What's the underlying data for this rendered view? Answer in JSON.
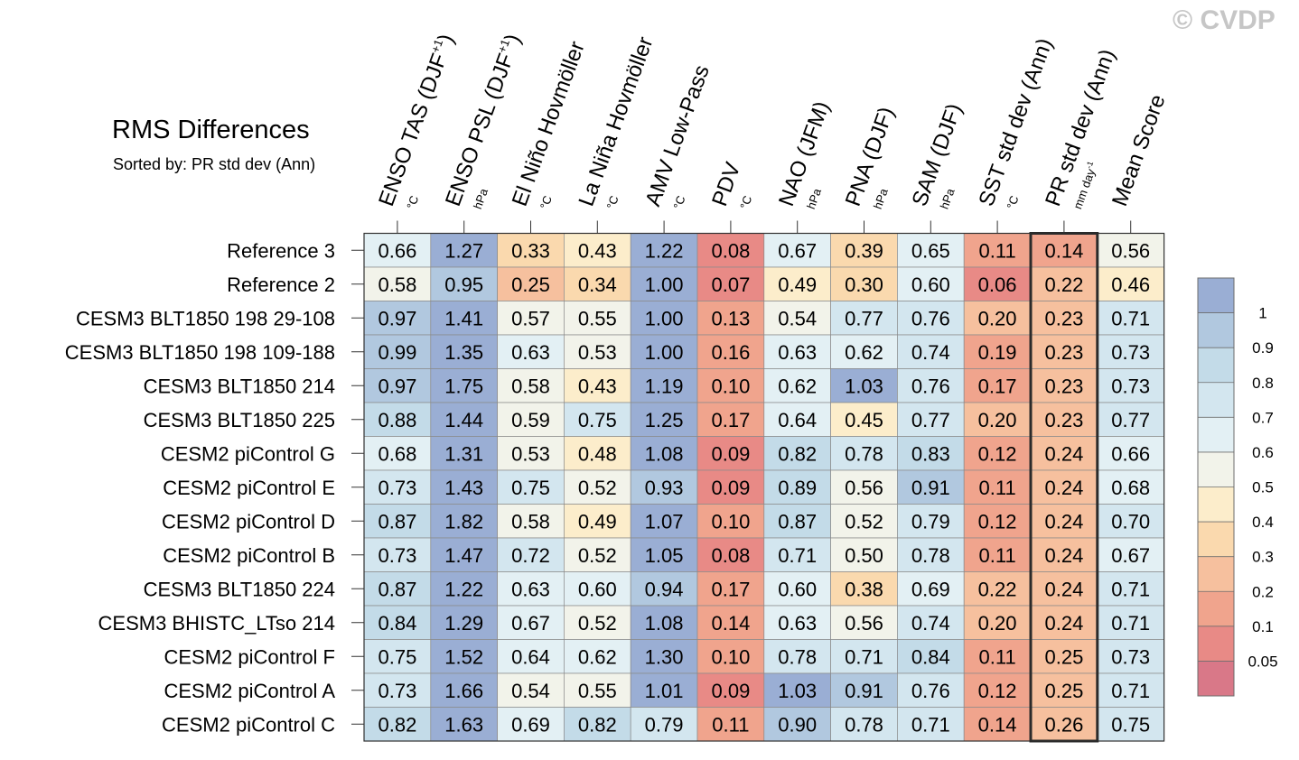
{
  "title": "RMS Differences",
  "subtitle": "Sorted by: PR std dev (Ann)",
  "watermark": "© CVDP",
  "chart_data": {
    "type": "heatmap",
    "columns": [
      {
        "name": "ENSO TAS (DJF",
        "sup": "+1",
        "close": ")",
        "unit": "°C"
      },
      {
        "name": "ENSO PSL (DJF",
        "sup": "+1",
        "close": ")",
        "unit": "hPa"
      },
      {
        "name": "El Niño Hovmöller",
        "unit": "°C"
      },
      {
        "name": "La Niña Hovmöller",
        "unit": "°C"
      },
      {
        "name": "AMV Low-Pass",
        "unit": "°C"
      },
      {
        "name": "PDV",
        "unit": "°C"
      },
      {
        "name": "NAO (JFM)",
        "unit": "hPa"
      },
      {
        "name": "PNA (DJF)",
        "unit": "hPa"
      },
      {
        "name": "SAM (DJF)",
        "unit": "hPa"
      },
      {
        "name": "SST std dev (Ann)",
        "unit": "°C"
      },
      {
        "name": "PR std dev (Ann)",
        "unit": "mm day",
        "unit_sup": "-1"
      },
      {
        "name": "Mean Score",
        "unit": ""
      }
    ],
    "rows": [
      "Reference 3",
      "Reference 2",
      "CESM3 BLT1850 198 29-108",
      "CESM3 BLT1850 198 109-188",
      "CESM3 BLT1850 214",
      "CESM3 BLT1850 225",
      "CESM2 piControl G",
      "CESM2 piControl E",
      "CESM2 piControl D",
      "CESM2 piControl B",
      "CESM3 BLT1850 224",
      "CESM3 BHISTC_LTso 214",
      "CESM2 piControl F",
      "CESM2 piControl A",
      "CESM2 piControl C"
    ],
    "values": [
      [
        "0.66",
        "1.27",
        "0.33",
        "0.43",
        "1.22",
        "0.08",
        "0.67",
        "0.39",
        "0.65",
        "0.11",
        "0.14",
        "0.56"
      ],
      [
        "0.58",
        "0.95",
        "0.25",
        "0.34",
        "1.00",
        "0.07",
        "0.49",
        "0.30",
        "0.60",
        "0.06",
        "0.22",
        "0.46"
      ],
      [
        "0.97",
        "1.41",
        "0.57",
        "0.55",
        "1.00",
        "0.13",
        "0.54",
        "0.77",
        "0.76",
        "0.20",
        "0.23",
        "0.71"
      ],
      [
        "0.99",
        "1.35",
        "0.63",
        "0.53",
        "1.00",
        "0.16",
        "0.63",
        "0.62",
        "0.74",
        "0.19",
        "0.23",
        "0.73"
      ],
      [
        "0.97",
        "1.75",
        "0.58",
        "0.43",
        "1.19",
        "0.10",
        "0.62",
        "1.03",
        "0.76",
        "0.17",
        "0.23",
        "0.73"
      ],
      [
        "0.88",
        "1.44",
        "0.59",
        "0.75",
        "1.25",
        "0.17",
        "0.64",
        "0.45",
        "0.77",
        "0.20",
        "0.23",
        "0.77"
      ],
      [
        "0.68",
        "1.31",
        "0.53",
        "0.48",
        "1.08",
        "0.09",
        "0.82",
        "0.78",
        "0.83",
        "0.12",
        "0.24",
        "0.66"
      ],
      [
        "0.73",
        "1.43",
        "0.75",
        "0.52",
        "0.93",
        "0.09",
        "0.89",
        "0.56",
        "0.91",
        "0.11",
        "0.24",
        "0.68"
      ],
      [
        "0.87",
        "1.82",
        "0.58",
        "0.49",
        "1.07",
        "0.10",
        "0.87",
        "0.52",
        "0.79",
        "0.12",
        "0.24",
        "0.70"
      ],
      [
        "0.73",
        "1.47",
        "0.72",
        "0.52",
        "1.05",
        "0.08",
        "0.71",
        "0.50",
        "0.78",
        "0.11",
        "0.24",
        "0.67"
      ],
      [
        "0.87",
        "1.22",
        "0.63",
        "0.60",
        "0.94",
        "0.17",
        "0.60",
        "0.38",
        "0.69",
        "0.22",
        "0.24",
        "0.71"
      ],
      [
        "0.84",
        "1.29",
        "0.67",
        "0.52",
        "1.08",
        "0.14",
        "0.63",
        "0.56",
        "0.74",
        "0.20",
        "0.24",
        "0.71"
      ],
      [
        "0.75",
        "1.52",
        "0.64",
        "0.62",
        "1.30",
        "0.10",
        "0.78",
        "0.71",
        "0.84",
        "0.11",
        "0.25",
        "0.73"
      ],
      [
        "0.73",
        "1.66",
        "0.54",
        "0.55",
        "1.01",
        "0.09",
        "1.03",
        "0.91",
        "0.76",
        "0.12",
        "0.25",
        "0.71"
      ],
      [
        "0.82",
        "1.63",
        "0.69",
        "0.82",
        "0.79",
        "0.11",
        "0.90",
        "0.78",
        "0.71",
        "0.14",
        "0.26",
        "0.75"
      ]
    ],
    "highlight_column": 10,
    "colorbar": {
      "labels": [
        "1",
        "0.9",
        "0.8",
        "0.7",
        "0.6",
        "0.5",
        "0.4",
        "0.3",
        "0.2",
        "0.1",
        "0.05"
      ],
      "levels": [
        1.0,
        0.9,
        0.8,
        0.7,
        0.6,
        0.5,
        0.4,
        0.3,
        0.2,
        0.1,
        0.05
      ],
      "colors": [
        "#9aaed4",
        "#b1c8df",
        "#c3dbe8",
        "#d3e6ef",
        "#e3f0f4",
        "#f2f3ea",
        "#fcedcb",
        "#fad9ae",
        "#f6c09e",
        "#f0a48d",
        "#e88a86",
        "#d97888"
      ]
    }
  }
}
